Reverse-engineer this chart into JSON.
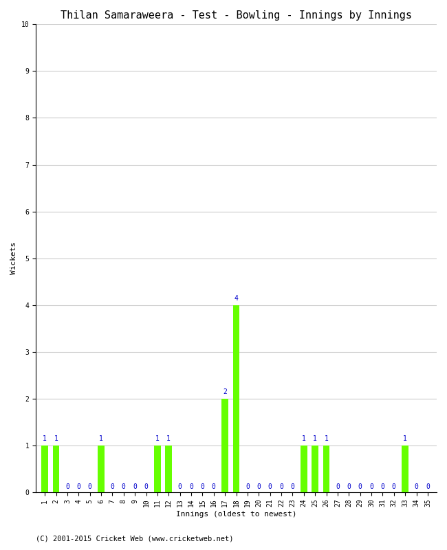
{
  "title": "Thilan Samaraweera - Test - Bowling - Innings by Innings",
  "xlabel": "Innings (oldest to newest)",
  "ylabel": "Wickets",
  "footnote": "(C) 2001-2015 Cricket Web (www.cricketweb.net)",
  "ylim": [
    0,
    10
  ],
  "yticks": [
    0,
    1,
    2,
    3,
    4,
    5,
    6,
    7,
    8,
    9,
    10
  ],
  "num_innings": 35,
  "wickets": [
    1,
    1,
    0,
    0,
    0,
    1,
    0,
    0,
    0,
    0,
    1,
    1,
    0,
    0,
    0,
    0,
    2,
    4,
    0,
    0,
    0,
    0,
    0,
    1,
    1,
    1,
    0,
    0,
    0,
    0,
    0,
    0,
    1,
    0,
    0
  ],
  "bar_color": "#66ff00",
  "label_color": "#0000cc",
  "bg_color": "#ffffff",
  "grid_color": "#cccccc",
  "title_fontsize": 11,
  "label_fontsize": 8,
  "tick_fontsize": 7,
  "annotation_fontsize": 7,
  "footnote_fontsize": 7.5
}
